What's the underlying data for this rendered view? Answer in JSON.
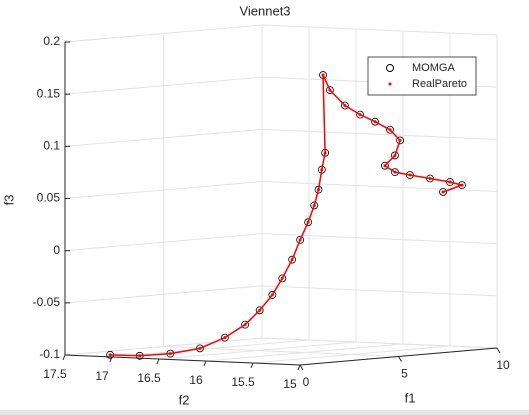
{
  "chart_data": {
    "type": "scatter3d",
    "title": "Viennet3",
    "xlabel": "f1",
    "ylabel": "f2",
    "zlabel": "f3",
    "xlim": [
      0,
      10
    ],
    "ylim": [
      15,
      17.5
    ],
    "zlim": [
      -0.1,
      0.2
    ],
    "xticks": [
      0,
      5,
      10
    ],
    "yticks": [
      15,
      15.5,
      16,
      16.5,
      17,
      17.5
    ],
    "zticks": [
      -0.1,
      -0.05,
      0,
      0.05,
      0.1,
      0.15,
      0.2
    ],
    "grid": true,
    "legend": "northeast",
    "series": [
      {
        "name": "MOMGA",
        "color": "#000000",
        "marker": "circle",
        "x": [
          0,
          0.12,
          0.24,
          0.36,
          0.48,
          0.6,
          0.72,
          0.84,
          0.96,
          1.08,
          1.2,
          1.32,
          1.44,
          1.56,
          1.68,
          1.8,
          1.17,
          1.52,
          2.28,
          3.05,
          3.81,
          4.57,
          5.08,
          4.82,
          4.31,
          4.82,
          5.58,
          6.6,
          7.61,
          8.22,
          7.26
        ],
        "y": [
          17.02,
          16.73,
          16.43,
          16.14,
          15.9,
          15.71,
          15.58,
          15.47,
          15.39,
          15.31,
          15.25,
          15.19,
          15.15,
          15.13,
          15.12,
          15.11,
          15,
          15,
          15,
          15,
          15,
          15,
          15,
          15,
          15,
          15,
          15,
          15,
          15,
          15,
          15
        ],
        "z": [
          -0.098,
          -0.098,
          -0.095,
          -0.089,
          -0.078,
          -0.065,
          -0.051,
          -0.036,
          -0.02,
          -0.002,
          0.017,
          0.034,
          0.05,
          0.065,
          0.084,
          0.1,
          0.176,
          0.161,
          0.145,
          0.135,
          0.127,
          0.118,
          0.107,
          0.093,
          0.084,
          0.077,
          0.073,
          0.068,
          0.063,
          0.059,
          0.054
        ]
      },
      {
        "name": "RealPareto",
        "color": "#ff0000",
        "marker": "dot",
        "x": [
          0,
          0.12,
          0.24,
          0.36,
          0.48,
          0.6,
          0.72,
          0.84,
          0.96,
          1.08,
          1.2,
          1.32,
          1.44,
          1.56,
          1.68,
          1.8,
          1.17,
          1.52,
          2.28,
          3.05,
          3.81,
          4.57,
          5.08,
          4.82,
          4.31,
          4.82,
          5.58,
          6.6,
          7.61,
          8.22,
          7.26
        ],
        "y": [
          17.02,
          16.73,
          16.43,
          16.14,
          15.9,
          15.71,
          15.58,
          15.47,
          15.39,
          15.31,
          15.25,
          15.19,
          15.15,
          15.13,
          15.12,
          15.11,
          15,
          15,
          15,
          15,
          15,
          15,
          15,
          15,
          15,
          15,
          15,
          15,
          15,
          15,
          15
        ],
        "z": [
          -0.098,
          -0.098,
          -0.095,
          -0.089,
          -0.078,
          -0.065,
          -0.051,
          -0.036,
          -0.02,
          -0.002,
          0.017,
          0.034,
          0.05,
          0.065,
          0.084,
          0.1,
          0.176,
          0.161,
          0.145,
          0.135,
          0.127,
          0.118,
          0.107,
          0.093,
          0.084,
          0.077,
          0.073,
          0.068,
          0.063,
          0.059,
          0.054
        ]
      }
    ]
  }
}
